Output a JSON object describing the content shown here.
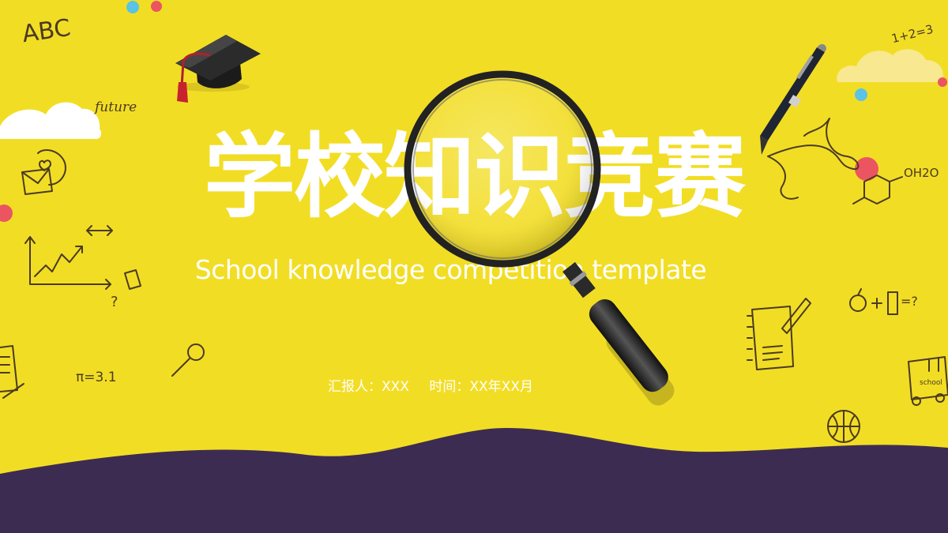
{
  "slide": {
    "title": "学校知识竞赛",
    "subtitle": "School knowledge competition template",
    "reporter_label": "汇报人：XXX",
    "time_label": "时间：XX年XX月"
  },
  "doodles": {
    "abc": "ABC",
    "future": "future",
    "math": "1+2=3",
    "pi": "π=3.1",
    "formula": "OH2O",
    "bus": "school",
    "question": "?",
    "equation": "=?"
  },
  "colors": {
    "background": "#f2dd25",
    "wave": "#3d2c52",
    "text": "#ffffff",
    "accent_red": "#ea5561",
    "accent_blue": "#5bc3e3"
  }
}
